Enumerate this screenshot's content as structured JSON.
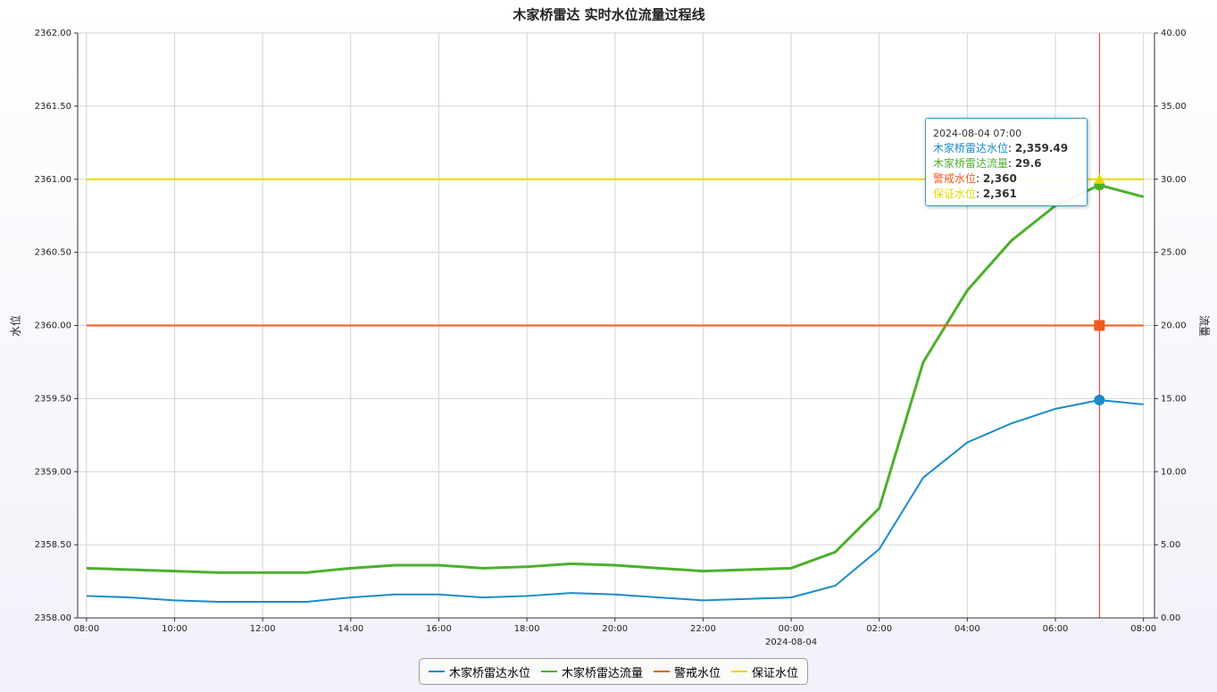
{
  "chart_data": {
    "type": "line",
    "title": "木家桥雷达 实时水位流量过程线",
    "ylabel": "水位",
    "y2label": "流量",
    "x": [
      0,
      1,
      2,
      3,
      4,
      5,
      6,
      7,
      8,
      9,
      10,
      11,
      12,
      13,
      14,
      15,
      16,
      17,
      18,
      19,
      20,
      21,
      22,
      23,
      24
    ],
    "xlim": [
      -0.2,
      24.25
    ],
    "xticks": [
      {
        "value": 0,
        "label": "08:00"
      },
      {
        "value": 2,
        "label": "10:00"
      },
      {
        "value": 4,
        "label": "12:00"
      },
      {
        "value": 6,
        "label": "14:00"
      },
      {
        "value": 8,
        "label": "16:00"
      },
      {
        "value": 10,
        "label": "18:00"
      },
      {
        "value": 12,
        "label": "20:00"
      },
      {
        "value": 14,
        "label": "22:00"
      },
      {
        "value": 16,
        "label": "00:00"
      },
      {
        "value": 18,
        "label": "02:00"
      },
      {
        "value": 20,
        "label": "04:00"
      },
      {
        "value": 22,
        "label": "06:00"
      },
      {
        "value": 24,
        "label": "08:00"
      }
    ],
    "x_date_label": {
      "value": 16,
      "label": "2024-08-04"
    },
    "ylim": [
      2358,
      2362
    ],
    "yticks": [
      {
        "value": 2358,
        "label": "2358.00"
      },
      {
        "value": 2358.5,
        "label": "2358.50"
      },
      {
        "value": 2359,
        "label": "2359.00"
      },
      {
        "value": 2359.5,
        "label": "2359.50"
      },
      {
        "value": 2360,
        "label": "2360.00"
      },
      {
        "value": 2360.5,
        "label": "2360.50"
      },
      {
        "value": 2361,
        "label": "2361.00"
      },
      {
        "value": 2361.5,
        "label": "2361.50"
      },
      {
        "value": 2362,
        "label": "2362.00"
      }
    ],
    "y2lim": [
      0,
      40
    ],
    "y2ticks": [
      {
        "value": 0,
        "label": "0.00"
      },
      {
        "value": 5,
        "label": "5.00"
      },
      {
        "value": 10,
        "label": "10.00"
      },
      {
        "value": 15,
        "label": "15.00"
      },
      {
        "value": 20,
        "label": "20.00"
      },
      {
        "value": 25,
        "label": "25.00"
      },
      {
        "value": 30,
        "label": "30.00"
      },
      {
        "value": 35,
        "label": "35.00"
      },
      {
        "value": 40,
        "label": "40.00"
      }
    ],
    "grid": true,
    "legend": "bottom",
    "series": [
      {
        "name": "木家桥雷达水位",
        "color": "#1a8cc7",
        "values": [
          2358.15,
          2358.14,
          2358.12,
          2358.11,
          2358.11,
          2358.11,
          2358.14,
          2358.16,
          2358.16,
          2358.14,
          2358.15,
          2358.17,
          2358.16,
          2358.14,
          2358.12,
          2358.13,
          2358.14,
          2358.22,
          2358.47,
          2358.96,
          2359.2,
          2359.33,
          2359.43,
          2359.49,
          2359.46
        ]
      },
      {
        "name": "木家桥雷达流量",
        "color": "#4daf2e",
        "axis": "y2",
        "values": [
          3.4,
          3.3,
          3.2,
          3.1,
          3.1,
          3.1,
          3.4,
          3.6,
          3.6,
          3.4,
          3.5,
          3.7,
          3.6,
          3.4,
          3.2,
          3.3,
          3.4,
          4.5,
          7.5,
          17.5,
          22.4,
          25.8,
          28.2,
          29.6,
          28.8
        ]
      },
      {
        "name": "警戒水位",
        "color": "#f05a1e",
        "values": [
          2360,
          2360,
          2360,
          2360,
          2360,
          2360,
          2360,
          2360,
          2360,
          2360,
          2360,
          2360,
          2360,
          2360,
          2360,
          2360,
          2360,
          2360,
          2360,
          2360,
          2360,
          2360,
          2360,
          2360,
          2360
        ]
      },
      {
        "name": "保证水位",
        "color": "#e6d800",
        "values": [
          2361,
          2361,
          2361,
          2361,
          2361,
          2361,
          2361,
          2361,
          2361,
          2361,
          2361,
          2361,
          2361,
          2361,
          2361,
          2361,
          2361,
          2361,
          2361,
          2361,
          2361,
          2361,
          2361,
          2361,
          2361
        ]
      }
    ],
    "tooltip": {
      "x": 23,
      "title": "2024-08-04 07:00",
      "value_labels": [
        "2,359.49",
        "29.6",
        "2,360",
        "2,361"
      ]
    }
  }
}
